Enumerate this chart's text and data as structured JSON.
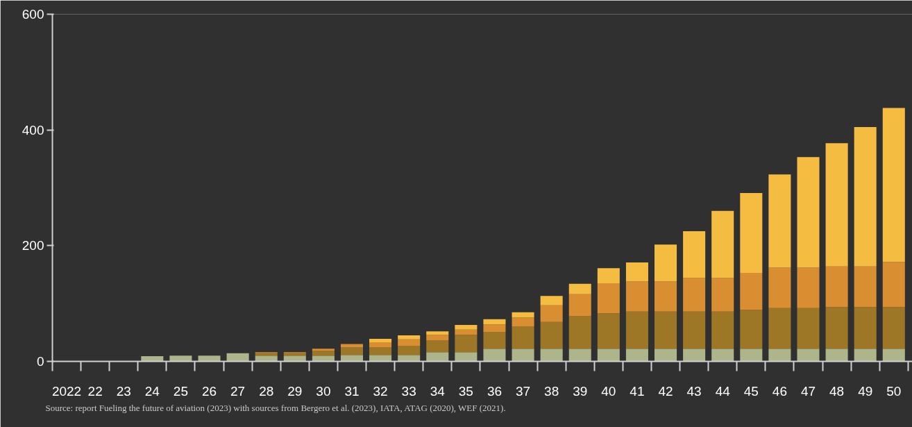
{
  "chart_data": {
    "type": "bar",
    "stacked": true,
    "categories": [
      "2022",
      "22",
      "23",
      "24",
      "25",
      "26",
      "27",
      "28",
      "29",
      "30",
      "31",
      "32",
      "33",
      "34",
      "35",
      "36",
      "37",
      "38",
      "39",
      "40",
      "41",
      "42",
      "43",
      "44",
      "45",
      "46",
      "47",
      "48",
      "49",
      "50"
    ],
    "series": [
      {
        "color": "#adb58a",
        "values": [
          0,
          0,
          0,
          9,
          10,
          10,
          14,
          10,
          10,
          10,
          11,
          11,
          11,
          16,
          16,
          22,
          22,
          22,
          22,
          22,
          22,
          22,
          22,
          22,
          22,
          22,
          22,
          22,
          22,
          22
        ]
      },
      {
        "color": "#9e7726",
        "values": [
          0,
          0,
          0,
          0,
          0,
          0,
          0,
          4,
          4,
          8,
          13,
          13,
          16,
          20,
          30,
          29,
          38,
          46,
          56,
          61,
          64,
          64,
          64,
          64,
          67,
          70,
          70,
          72,
          72,
          72
        ]
      },
      {
        "color": "#d98e32",
        "values": [
          0,
          0,
          0,
          0,
          0,
          0,
          0,
          2,
          2,
          4,
          6,
          9,
          11,
          10,
          9,
          13,
          16,
          29,
          38,
          52,
          52,
          52,
          58,
          58,
          64,
          70,
          70,
          70,
          70,
          78
        ]
      },
      {
        "color": "#f4bd41",
        "values": [
          0,
          0,
          0,
          0,
          0,
          0,
          0,
          0,
          0,
          0,
          0,
          6,
          7,
          6,
          8,
          9,
          9,
          16,
          18,
          26,
          33,
          64,
          81,
          116,
          138,
          161,
          191,
          213,
          241,
          266
        ]
      }
    ],
    "ylim": [
      0,
      600
    ],
    "yticks": [
      0,
      200,
      400,
      600
    ],
    "grid": false,
    "annotations": [
      "Source:  report Fueling the future of aviation (2023) with sources from Bergero et al. (2023), IATA, ATAG (2020), WEF (2021)."
    ]
  }
}
